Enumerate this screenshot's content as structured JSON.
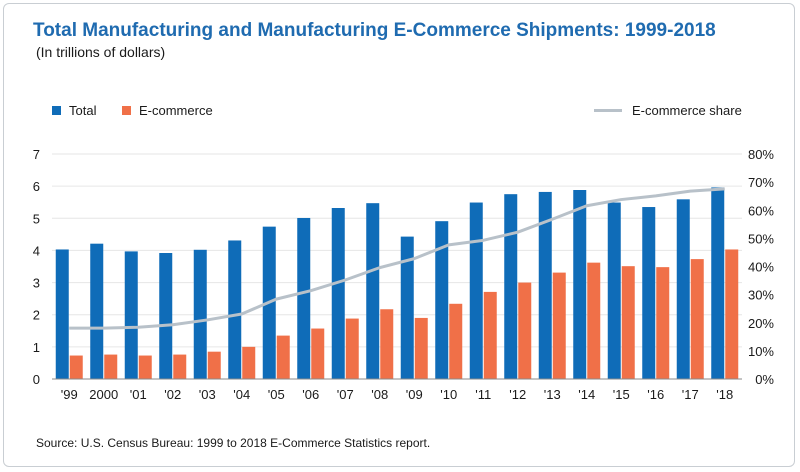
{
  "title": "Total Manufacturing and Manufacturing E-Commerce Shipments: 1999-2018",
  "subtitle": "(In trillions of dollars)",
  "source": "Source: U.S. Census Bureau: 1999 to 2018 E-Commerce Statistics report.",
  "legend": {
    "total": "Total",
    "ecommerce": "E-commerce",
    "share": "E-commerce share"
  },
  "colors": {
    "total": "#0f6cb8",
    "ecommerce": "#f07048",
    "share": "#b8c1c9",
    "title": "#1f6bb0",
    "grid": "#e6e6e6"
  },
  "chart_data": {
    "type": "bar",
    "categories": [
      "'99",
      "2000",
      "'01",
      "'02",
      "'03",
      "'04",
      "'05",
      "'06",
      "'07",
      "'08",
      "'09",
      "'10",
      "'11",
      "'12",
      "'13",
      "'14",
      "'15",
      "'16",
      "'17",
      "'18"
    ],
    "series": [
      {
        "name": "Total",
        "type": "bar",
        "axis": "left",
        "values": [
          4.03,
          4.21,
          3.97,
          3.92,
          4.02,
          4.31,
          4.74,
          5.01,
          5.32,
          5.47,
          4.43,
          4.91,
          5.49,
          5.75,
          5.82,
          5.88,
          5.49,
          5.35,
          5.59,
          5.96
        ]
      },
      {
        "name": "E-commerce",
        "type": "bar",
        "axis": "left",
        "values": [
          0.73,
          0.76,
          0.73,
          0.76,
          0.85,
          1.0,
          1.35,
          1.57,
          1.88,
          2.17,
          1.9,
          2.34,
          2.71,
          3.0,
          3.31,
          3.62,
          3.51,
          3.48,
          3.73,
          4.03
        ]
      },
      {
        "name": "E-commerce share",
        "type": "line",
        "axis": "right",
        "values": [
          18.1,
          18.1,
          18.4,
          19.3,
          21.0,
          23.1,
          28.4,
          31.4,
          35.2,
          39.6,
          42.8,
          47.7,
          49.3,
          52.2,
          56.8,
          61.6,
          63.8,
          65.1,
          66.8,
          67.6
        ]
      }
    ],
    "y_left": {
      "min": 0,
      "max": 7,
      "ticks": [
        "0",
        "1",
        "2",
        "3",
        "4",
        "5",
        "6",
        "7"
      ]
    },
    "y_right": {
      "min": 0,
      "max": 80,
      "ticks": [
        "0%",
        "10%",
        "20%",
        "30%",
        "40%",
        "50%",
        "60%",
        "70%",
        "80%"
      ]
    },
    "grid": true,
    "legend_position": "top"
  }
}
